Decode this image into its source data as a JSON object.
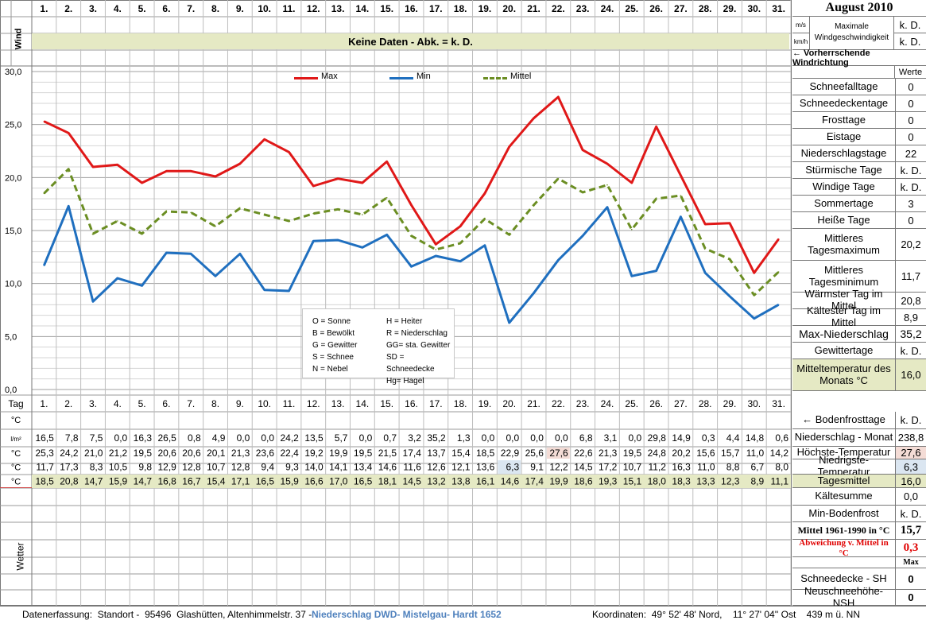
{
  "header": {
    "days": [
      "1.",
      "2.",
      "3.",
      "4.",
      "5.",
      "6.",
      "7.",
      "8.",
      "9.",
      "10.",
      "11.",
      "12.",
      "13.",
      "14.",
      "15.",
      "16.",
      "17.",
      "18.",
      "19.",
      "20.",
      "21.",
      "22.",
      "23.",
      "24.",
      "25.",
      "26.",
      "27.",
      "28.",
      "29.",
      "30.",
      "31."
    ],
    "month_title": "August 2010"
  },
  "wind": {
    "label": "Wind",
    "unit_ms": "m/s",
    "unit_kmh": "km/h",
    "no_data_text": "Keine Daten - Abk. = k. D.",
    "max_label_1": "Maximale",
    "max_label_2": "Windgeschwindigkeit",
    "value_ms": "k. D.",
    "value_kmh": "k. D.",
    "direction_label": "← Vorherrschende Windrichtung",
    "werte_label": "Werte"
  },
  "legend_box": {
    "left": [
      "O = Sonne",
      "B = Bewölkt",
      "G = Gewitter",
      "S = Schnee",
      "N = Nebel"
    ],
    "right": [
      "H = Heiter",
      "R = Niederschlag",
      "GG= sta. Gewitter",
      "SD = Schneedecke",
      "Hg= Hagel"
    ]
  },
  "chart_data": {
    "type": "line",
    "x": [
      1,
      2,
      3,
      4,
      5,
      6,
      7,
      8,
      9,
      10,
      11,
      12,
      13,
      14,
      15,
      16,
      17,
      18,
      19,
      20,
      21,
      22,
      23,
      24,
      25,
      26,
      27,
      28,
      29,
      30,
      31
    ],
    "ylim": [
      0,
      30
    ],
    "yticks": [
      "0,0",
      "5,0",
      "10,0",
      "15,0",
      "20,0",
      "25,0",
      "30,0"
    ],
    "grid": true,
    "legend_position": "top",
    "series": [
      {
        "name": "Max",
        "color": "#e01818",
        "style": "solid",
        "values": [
          25.3,
          24.2,
          21.0,
          21.2,
          19.5,
          20.6,
          20.6,
          20.1,
          21.3,
          23.6,
          22.4,
          19.2,
          19.9,
          19.5,
          21.5,
          17.4,
          13.7,
          15.4,
          18.5,
          22.9,
          25.6,
          27.6,
          22.6,
          21.3,
          19.5,
          24.8,
          20.2,
          15.6,
          15.7,
          11.0,
          14.2
        ]
      },
      {
        "name": "Min",
        "color": "#1f6fbf",
        "style": "solid",
        "values": [
          11.7,
          17.3,
          8.3,
          10.5,
          9.8,
          12.9,
          12.8,
          10.7,
          12.8,
          9.4,
          9.3,
          14.0,
          14.1,
          13.4,
          14.6,
          11.6,
          12.6,
          12.1,
          13.6,
          6.3,
          9.1,
          12.2,
          14.5,
          17.2,
          10.7,
          11.2,
          16.3,
          11.0,
          8.8,
          6.7,
          8.0
        ]
      },
      {
        "name": "Mittel",
        "color": "#6b8e23",
        "style": "dashed",
        "values": [
          18.5,
          20.8,
          14.7,
          15.9,
          14.7,
          16.8,
          16.7,
          15.4,
          17.1,
          16.5,
          15.9,
          16.6,
          17.0,
          16.5,
          18.1,
          14.5,
          13.2,
          13.8,
          16.1,
          14.6,
          17.4,
          19.9,
          18.6,
          19.3,
          15.1,
          18.0,
          18.3,
          13.3,
          12.3,
          8.9,
          11.1
        ]
      }
    ]
  },
  "table": {
    "tag_label": "Tag",
    "unit_c": "°C",
    "unit_lm2": "l/m²",
    "precip": [
      "16,5",
      "7,8",
      "7,5",
      "0,0",
      "16,3",
      "26,5",
      "0,8",
      "4,9",
      "0,0",
      "0,0",
      "24,2",
      "13,5",
      "5,7",
      "0,0",
      "0,7",
      "3,2",
      "35,2",
      "1,3",
      "0,0",
      "0,0",
      "0,0",
      "0,0",
      "6,8",
      "3,1",
      "0,0",
      "29,8",
      "14,9",
      "0,3",
      "4,4",
      "14,8",
      "0,6"
    ],
    "max": [
      "25,3",
      "24,2",
      "21,0",
      "21,2",
      "19,5",
      "20,6",
      "20,6",
      "20,1",
      "21,3",
      "23,6",
      "22,4",
      "19,2",
      "19,9",
      "19,5",
      "21,5",
      "17,4",
      "13,7",
      "15,4",
      "18,5",
      "22,9",
      "25,6",
      "27,6",
      "22,6",
      "21,3",
      "19,5",
      "24,8",
      "20,2",
      "15,6",
      "15,7",
      "11,0",
      "14,2"
    ],
    "min": [
      "11,7",
      "17,3",
      "8,3",
      "10,5",
      "9,8",
      "12,9",
      "12,8",
      "10,7",
      "12,8",
      "9,4",
      "9,3",
      "14,0",
      "14,1",
      "13,4",
      "14,6",
      "11,6",
      "12,6",
      "12,1",
      "13,6",
      "6,3",
      "9,1",
      "12,2",
      "14,5",
      "17,2",
      "10,7",
      "11,2",
      "16,3",
      "11,0",
      "8,8",
      "6,7",
      "8,0"
    ],
    "mean": [
      "18,5",
      "20,8",
      "14,7",
      "15,9",
      "14,7",
      "16,8",
      "16,7",
      "15,4",
      "17,1",
      "16,5",
      "15,9",
      "16,6",
      "17,0",
      "16,5",
      "18,1",
      "14,5",
      "13,2",
      "13,8",
      "16,1",
      "14,6",
      "17,4",
      "19,9",
      "18,6",
      "19,3",
      "15,1",
      "18,0",
      "18,3",
      "13,3",
      "12,3",
      "8,9",
      "11,1"
    ],
    "wetter_label": "Wetter",
    "colors": {
      "max_highlight": "#f4dcd6",
      "min_highlight": "#dbe6f1",
      "mean_row": "#e5e9c4"
    }
  },
  "stats": [
    {
      "label": "Schneefalltage",
      "value": "0"
    },
    {
      "label": "Schneedeckentage",
      "value": "0"
    },
    {
      "label": "Frosttage",
      "value": "0"
    },
    {
      "label": "Eistage",
      "value": "0"
    },
    {
      "label": "Niederschlagstage",
      "value": "22"
    },
    {
      "label": "Stürmische Tage",
      "value": "k. D."
    },
    {
      "label": "Windige Tage",
      "value": "k. D."
    },
    {
      "label": "Sommertage",
      "value": "3"
    },
    {
      "label": "Heiße Tage",
      "value": "0"
    },
    {
      "label": "Mittleres Tagesmaximum",
      "value": "20,2"
    },
    {
      "label": "Mittleres Tagesminimum",
      "value": "11,7"
    },
    {
      "label": "Wärmster Tag im Mittel",
      "value": "20,8"
    },
    {
      "label": "Kältester Tag im Mittel",
      "value": "8,9"
    },
    {
      "label": "Max-Niederschlag",
      "value": "35,2"
    },
    {
      "label": "Gewittertage",
      "value": "k. D."
    },
    {
      "label": "Mitteltemperatur des Monats °C",
      "value": "16,0"
    }
  ],
  "lower_stats": {
    "bodenfrost_label": "← Bodenfrosttage",
    "bodenfrost_value": "k. D.",
    "precip_month_label": "Niederschlag - Monat",
    "precip_month_value": "238,8",
    "max_temp_label": "Höchste-Temperatur",
    "max_temp_value": "27,6",
    "min_temp_label": "Niedrigste-Temperatur",
    "min_temp_value": "6,3",
    "mean_label": "Tagesmittel",
    "mean_value": "16,0",
    "kaeltesumme_label": "Kältesumme",
    "kaeltesumme_value": "0,0",
    "min_bodenfrost_label": "Min-Bodenfrost",
    "min_bodenfrost_value": "k. D.",
    "mittel_1961_label": "Mittel 1961-1990 in °C",
    "mittel_1961_value": "15,7",
    "abweichung_label": "Abweichung v. Mittel in °C",
    "abweichung_value": "0,3",
    "max_header": "Max",
    "schneedecke_label": "Schneedecke -   SH",
    "schneedecke_value": "0",
    "neuschnee_label": "Neuschneehöhe- NSH",
    "neuschnee_value": "0"
  },
  "footer": {
    "text_left": "Datenerfassung:  Standort -  95496  Glashütten, Altenhimmelstr. 37 - ",
    "text_blue": "Niederschlag DWD- Mistelgau- Hardt 1652",
    "text_right": "Koordinaten:  49° 52' 48' Nord,    11° 27' 04'' Ost    439 m ü. NN"
  }
}
